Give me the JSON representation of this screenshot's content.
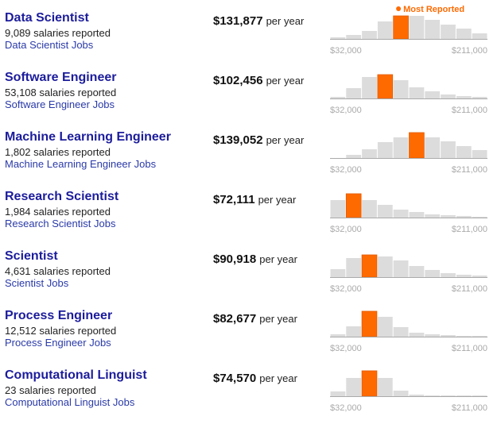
{
  "legend": "Most Reported",
  "axis": {
    "min_label": "$32,000",
    "max_label": "$211,000"
  },
  "jobs": [
    {
      "title": "Data Scientist",
      "count": "9,089 salaries reported",
      "link": "Data Scientist Jobs",
      "salary": "$131,877",
      "period": "per year",
      "histogram": {
        "values": [
          2,
          5,
          10,
          22,
          29,
          29,
          24,
          18,
          13,
          7
        ],
        "highlight": 4
      }
    },
    {
      "title": "Software Engineer",
      "count": "53,108 salaries reported",
      "link": "Software Engineer Jobs",
      "salary": "$102,456",
      "period": "per year",
      "histogram": {
        "values": [
          2,
          13,
          27,
          30,
          23,
          14,
          9,
          5,
          3,
          2
        ],
        "highlight": 3
      }
    },
    {
      "title": "Machine Learning Engineer",
      "count": "1,802 salaries reported",
      "link": "Machine Learning Engineer Jobs",
      "salary": "$139,052",
      "period": "per year",
      "histogram": {
        "values": [
          0,
          4,
          11,
          20,
          26,
          32,
          26,
          21,
          15,
          10
        ],
        "highlight": 5
      }
    },
    {
      "title": "Research Scientist",
      "count": "1,984 salaries reported",
      "link": "Research Scientist Jobs",
      "salary": "$72,111",
      "period": "per year",
      "histogram": {
        "values": [
          22,
          30,
          22,
          16,
          10,
          7,
          4,
          3,
          2,
          1
        ],
        "highlight": 1
      }
    },
    {
      "title": "Scientist",
      "count": "4,631 salaries reported",
      "link": "Scientist Jobs",
      "salary": "$90,918",
      "period": "per year",
      "histogram": {
        "values": [
          10,
          24,
          28,
          26,
          21,
          14,
          9,
          5,
          3,
          2
        ],
        "highlight": 2
      }
    },
    {
      "title": "Process Engineer",
      "count": "12,512 salaries reported",
      "link": "Process Engineer Jobs",
      "salary": "$82,677",
      "period": "per year",
      "histogram": {
        "values": [
          3,
          13,
          32,
          25,
          12,
          5,
          3,
          2,
          1,
          1
        ],
        "highlight": 2
      }
    },
    {
      "title": "Computational Linguist",
      "count": "23 salaries reported",
      "link": "Computational Linguist Jobs",
      "salary": "$74,570",
      "period": "per year",
      "histogram": {
        "values": [
          6,
          23,
          32,
          23,
          7,
          2,
          1,
          1,
          1,
          1
        ],
        "highlight": 2
      }
    }
  ]
}
